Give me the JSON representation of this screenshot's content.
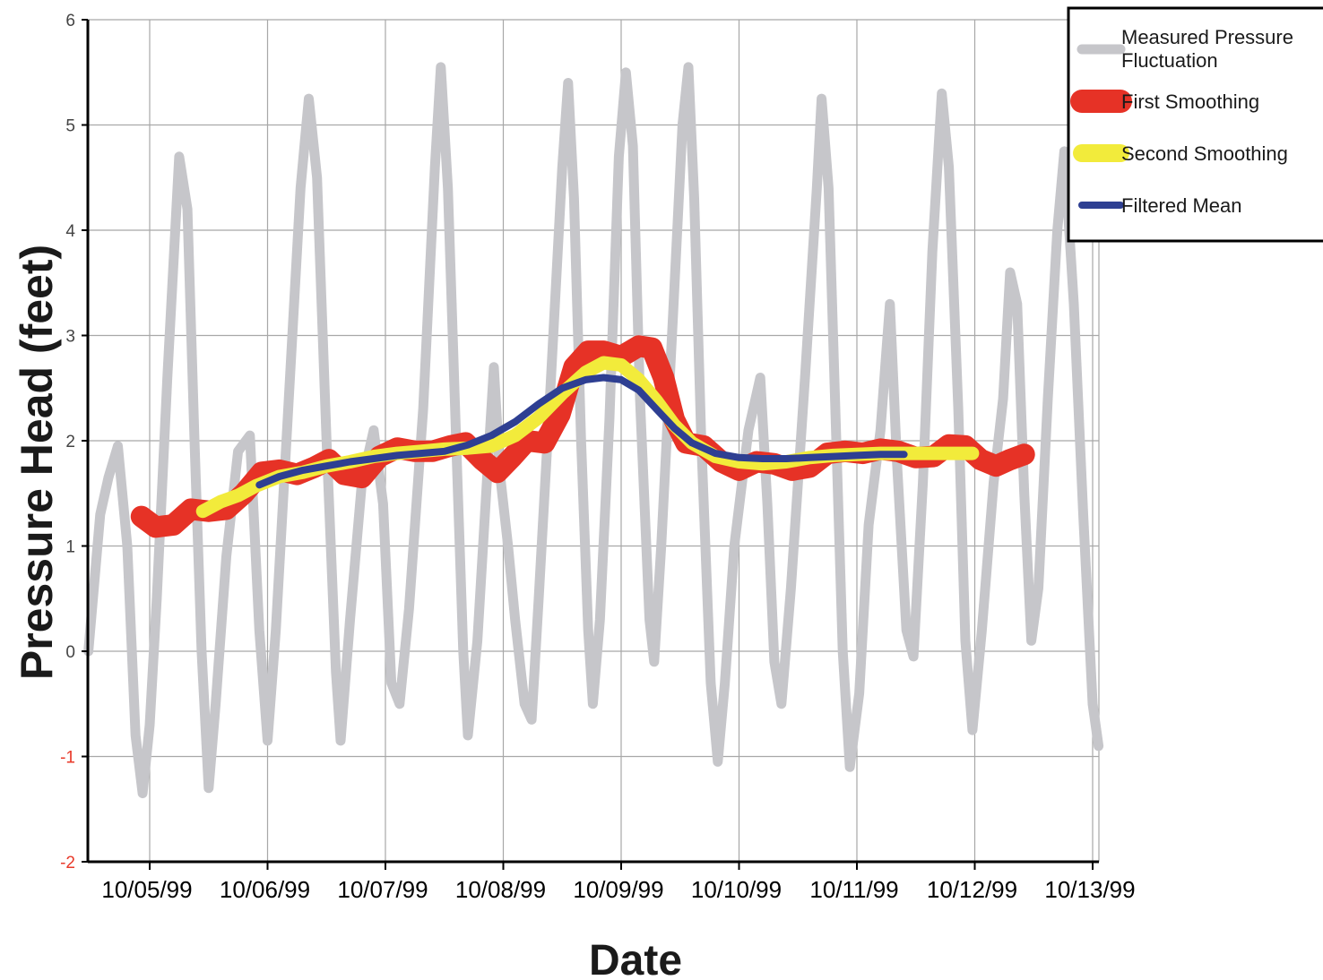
{
  "chart_data": {
    "type": "line",
    "xlabel": "Date",
    "ylabel": "Pressure Head (feet)",
    "x_tick_labels": [
      "10/05/99",
      "10/06/99",
      "10/07/99",
      "10/08/99",
      "10/09/99",
      "10/10/99",
      "10/11/99",
      "10/12/99",
      "10/13/99"
    ],
    "x_range_days": [
      -0.52,
      8.05
    ],
    "ylim": [
      -2,
      6
    ],
    "y_ticks": [
      -2,
      -1,
      0,
      1,
      2,
      3,
      4,
      5,
      6
    ],
    "grid": true,
    "legend_position": "top-right",
    "series": [
      {
        "name": "Measured Pressure Fluctuation",
        "color": "#c6c6ca",
        "points": [
          [
            -0.52,
            0.0
          ],
          [
            -0.42,
            1.3
          ],
          [
            -0.35,
            1.65
          ],
          [
            -0.27,
            1.95
          ],
          [
            -0.19,
            1.0
          ],
          [
            -0.12,
            -0.8
          ],
          [
            -0.06,
            -1.35
          ],
          [
            0.0,
            -0.7
          ],
          [
            0.06,
            0.5
          ],
          [
            0.15,
            2.6
          ],
          [
            0.25,
            4.7
          ],
          [
            0.32,
            4.2
          ],
          [
            0.38,
            2.0
          ],
          [
            0.44,
            0.0
          ],
          [
            0.5,
            -1.3
          ],
          [
            0.56,
            -0.5
          ],
          [
            0.65,
            0.9
          ],
          [
            0.75,
            1.9
          ],
          [
            0.85,
            2.05
          ],
          [
            0.93,
            0.2
          ],
          [
            1.0,
            -0.85
          ],
          [
            1.07,
            0.2
          ],
          [
            1.18,
            2.4
          ],
          [
            1.28,
            4.4
          ],
          [
            1.35,
            5.25
          ],
          [
            1.42,
            4.5
          ],
          [
            1.5,
            2.0
          ],
          [
            1.58,
            -0.2
          ],
          [
            1.62,
            -0.85
          ],
          [
            1.7,
            0.3
          ],
          [
            1.8,
            1.6
          ],
          [
            1.9,
            2.1
          ],
          [
            1.98,
            1.4
          ],
          [
            2.05,
            -0.3
          ],
          [
            2.12,
            -0.5
          ],
          [
            2.2,
            0.4
          ],
          [
            2.32,
            2.3
          ],
          [
            2.42,
            4.6
          ],
          [
            2.47,
            5.55
          ],
          [
            2.53,
            4.4
          ],
          [
            2.6,
            2.0
          ],
          [
            2.66,
            0.0
          ],
          [
            2.7,
            -0.8
          ],
          [
            2.78,
            0.1
          ],
          [
            2.86,
            1.6
          ],
          [
            2.92,
            2.7
          ],
          [
            2.97,
            1.7
          ],
          [
            3.04,
            1.0
          ],
          [
            3.1,
            0.3
          ],
          [
            3.18,
            -0.5
          ],
          [
            3.24,
            -0.65
          ],
          [
            3.3,
            0.5
          ],
          [
            3.4,
            2.5
          ],
          [
            3.5,
            4.6
          ],
          [
            3.55,
            5.4
          ],
          [
            3.6,
            4.3
          ],
          [
            3.66,
            2.0
          ],
          [
            3.72,
            0.2
          ],
          [
            3.76,
            -0.5
          ],
          [
            3.82,
            0.3
          ],
          [
            3.9,
            2.2
          ],
          [
            3.98,
            4.7
          ],
          [
            4.04,
            5.5
          ],
          [
            4.1,
            4.8
          ],
          [
            4.16,
            2.4
          ],
          [
            4.24,
            0.3
          ],
          [
            4.28,
            -0.1
          ],
          [
            4.34,
            1.0
          ],
          [
            4.44,
            3.2
          ],
          [
            4.52,
            5.0
          ],
          [
            4.57,
            5.55
          ],
          [
            4.62,
            4.3
          ],
          [
            4.68,
            2.0
          ],
          [
            4.76,
            -0.3
          ],
          [
            4.82,
            -1.05
          ],
          [
            4.88,
            -0.3
          ],
          [
            4.96,
            1.0
          ],
          [
            5.08,
            2.1
          ],
          [
            5.18,
            2.6
          ],
          [
            5.24,
            1.4
          ],
          [
            5.3,
            -0.1
          ],
          [
            5.36,
            -0.5
          ],
          [
            5.44,
            0.6
          ],
          [
            5.56,
            2.6
          ],
          [
            5.66,
            4.4
          ],
          [
            5.7,
            5.25
          ],
          [
            5.76,
            4.4
          ],
          [
            5.82,
            2.2
          ],
          [
            5.88,
            0.0
          ],
          [
            5.94,
            -1.1
          ],
          [
            6.02,
            -0.4
          ],
          [
            6.1,
            1.2
          ],
          [
            6.2,
            2.1
          ],
          [
            6.28,
            3.3
          ],
          [
            6.34,
            1.8
          ],
          [
            6.42,
            0.2
          ],
          [
            6.48,
            -0.05
          ],
          [
            6.56,
            1.6
          ],
          [
            6.64,
            3.8
          ],
          [
            6.72,
            5.3
          ],
          [
            6.78,
            4.6
          ],
          [
            6.86,
            2.3
          ],
          [
            6.92,
            0.1
          ],
          [
            6.98,
            -0.75
          ],
          [
            7.06,
            0.2
          ],
          [
            7.16,
            1.6
          ],
          [
            7.24,
            2.4
          ],
          [
            7.3,
            3.6
          ],
          [
            7.36,
            3.3
          ],
          [
            7.42,
            1.5
          ],
          [
            7.48,
            0.1
          ],
          [
            7.54,
            0.6
          ],
          [
            7.62,
            2.4
          ],
          [
            7.7,
            4.0
          ],
          [
            7.76,
            4.75
          ],
          [
            7.84,
            3.3
          ],
          [
            7.92,
            1.3
          ],
          [
            8.0,
            -0.5
          ],
          [
            8.05,
            -0.9
          ]
        ]
      },
      {
        "name": "First Smoothing",
        "color": "#e63226",
        "points": [
          [
            -0.07,
            1.28
          ],
          [
            0.05,
            1.18
          ],
          [
            0.2,
            1.2
          ],
          [
            0.35,
            1.35
          ],
          [
            0.5,
            1.33
          ],
          [
            0.65,
            1.35
          ],
          [
            0.8,
            1.5
          ],
          [
            0.95,
            1.7
          ],
          [
            1.1,
            1.72
          ],
          [
            1.25,
            1.68
          ],
          [
            1.4,
            1.75
          ],
          [
            1.52,
            1.82
          ],
          [
            1.65,
            1.68
          ],
          [
            1.8,
            1.65
          ],
          [
            1.95,
            1.85
          ],
          [
            2.1,
            1.93
          ],
          [
            2.25,
            1.9
          ],
          [
            2.4,
            1.9
          ],
          [
            2.55,
            1.95
          ],
          [
            2.68,
            1.98
          ],
          [
            2.82,
            1.82
          ],
          [
            2.95,
            1.7
          ],
          [
            3.08,
            1.85
          ],
          [
            3.2,
            2.0
          ],
          [
            3.35,
            1.98
          ],
          [
            3.48,
            2.25
          ],
          [
            3.6,
            2.7
          ],
          [
            3.72,
            2.85
          ],
          [
            3.85,
            2.85
          ],
          [
            4.0,
            2.8
          ],
          [
            4.15,
            2.9
          ],
          [
            4.26,
            2.88
          ],
          [
            4.36,
            2.6
          ],
          [
            4.45,
            2.2
          ],
          [
            4.55,
            1.98
          ],
          [
            4.7,
            1.95
          ],
          [
            4.85,
            1.8
          ],
          [
            5.0,
            1.72
          ],
          [
            5.15,
            1.8
          ],
          [
            5.3,
            1.78
          ],
          [
            5.45,
            1.72
          ],
          [
            5.6,
            1.75
          ],
          [
            5.75,
            1.88
          ],
          [
            5.9,
            1.9
          ],
          [
            6.05,
            1.88
          ],
          [
            6.2,
            1.92
          ],
          [
            6.35,
            1.9
          ],
          [
            6.5,
            1.84
          ],
          [
            6.65,
            1.85
          ],
          [
            6.78,
            1.96
          ],
          [
            6.92,
            1.95
          ],
          [
            7.05,
            1.82
          ],
          [
            7.18,
            1.76
          ],
          [
            7.3,
            1.82
          ],
          [
            7.42,
            1.87
          ]
        ]
      },
      {
        "name": "Second Smoothing",
        "color": "#f2eb3b",
        "points": [
          [
            0.45,
            1.33
          ],
          [
            0.6,
            1.42
          ],
          [
            0.75,
            1.48
          ],
          [
            0.9,
            1.57
          ],
          [
            1.1,
            1.66
          ],
          [
            1.3,
            1.7
          ],
          [
            1.5,
            1.76
          ],
          [
            1.7,
            1.8
          ],
          [
            1.9,
            1.85
          ],
          [
            2.1,
            1.88
          ],
          [
            2.3,
            1.9
          ],
          [
            2.5,
            1.92
          ],
          [
            2.7,
            1.93
          ],
          [
            2.9,
            1.95
          ],
          [
            3.1,
            2.05
          ],
          [
            3.3,
            2.22
          ],
          [
            3.5,
            2.45
          ],
          [
            3.7,
            2.65
          ],
          [
            3.85,
            2.74
          ],
          [
            4.0,
            2.72
          ],
          [
            4.15,
            2.58
          ],
          [
            4.3,
            2.38
          ],
          [
            4.45,
            2.15
          ],
          [
            4.6,
            1.98
          ],
          [
            4.8,
            1.85
          ],
          [
            5.0,
            1.8
          ],
          [
            5.2,
            1.78
          ],
          [
            5.4,
            1.8
          ],
          [
            5.6,
            1.84
          ],
          [
            5.8,
            1.86
          ],
          [
            6.0,
            1.87
          ],
          [
            6.2,
            1.88
          ],
          [
            6.4,
            1.88
          ],
          [
            6.6,
            1.88
          ],
          [
            6.8,
            1.88
          ],
          [
            6.98,
            1.88
          ]
        ]
      },
      {
        "name": "Filtered Mean",
        "color": "#2e3f92",
        "points": [
          [
            0.93,
            1.58
          ],
          [
            1.1,
            1.66
          ],
          [
            1.3,
            1.72
          ],
          [
            1.5,
            1.76
          ],
          [
            1.7,
            1.8
          ],
          [
            1.9,
            1.83
          ],
          [
            2.1,
            1.86
          ],
          [
            2.3,
            1.88
          ],
          [
            2.5,
            1.9
          ],
          [
            2.7,
            1.96
          ],
          [
            2.9,
            2.05
          ],
          [
            3.1,
            2.18
          ],
          [
            3.3,
            2.35
          ],
          [
            3.5,
            2.5
          ],
          [
            3.7,
            2.58
          ],
          [
            3.85,
            2.6
          ],
          [
            4.0,
            2.58
          ],
          [
            4.15,
            2.48
          ],
          [
            4.3,
            2.3
          ],
          [
            4.45,
            2.12
          ],
          [
            4.6,
            1.98
          ],
          [
            4.8,
            1.88
          ],
          [
            5.0,
            1.84
          ],
          [
            5.2,
            1.83
          ],
          [
            5.4,
            1.83
          ],
          [
            5.6,
            1.84
          ],
          [
            5.8,
            1.85
          ],
          [
            6.0,
            1.86
          ],
          [
            6.2,
            1.87
          ],
          [
            6.4,
            1.87
          ]
        ]
      }
    ]
  }
}
